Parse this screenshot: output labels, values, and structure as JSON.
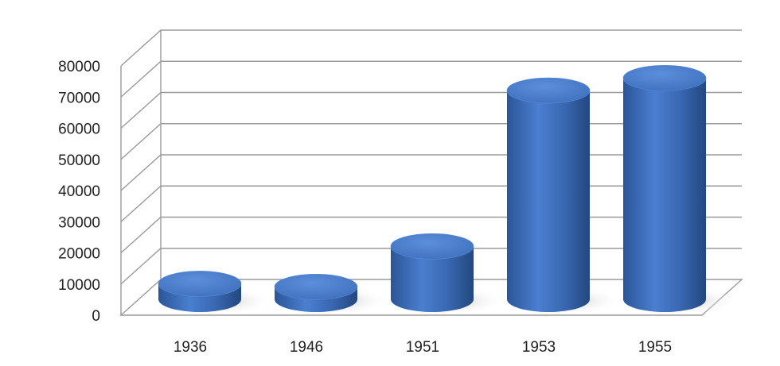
{
  "chart_data": {
    "type": "bar",
    "style": "3d-cylinder",
    "categories": [
      "1936",
      "1946",
      "1951",
      "1953",
      "1955"
    ],
    "series": [
      {
        "values": [
          5000,
          4000,
          17000,
          67000,
          71000
        ]
      }
    ],
    "title": "",
    "xlabel": "",
    "ylabel": "",
    "ylim": [
      0,
      80000
    ],
    "yticks": [
      "0",
      "10000",
      "20000",
      "30000",
      "40000",
      "50000",
      "60000",
      "70000",
      "80000"
    ],
    "grid": true,
    "legend": "none",
    "colors": {
      "bar_body": "#3f70be",
      "bar_top": "#4d80cc",
      "grid": "#9a9a9a",
      "axis_line": "#555555"
    }
  }
}
